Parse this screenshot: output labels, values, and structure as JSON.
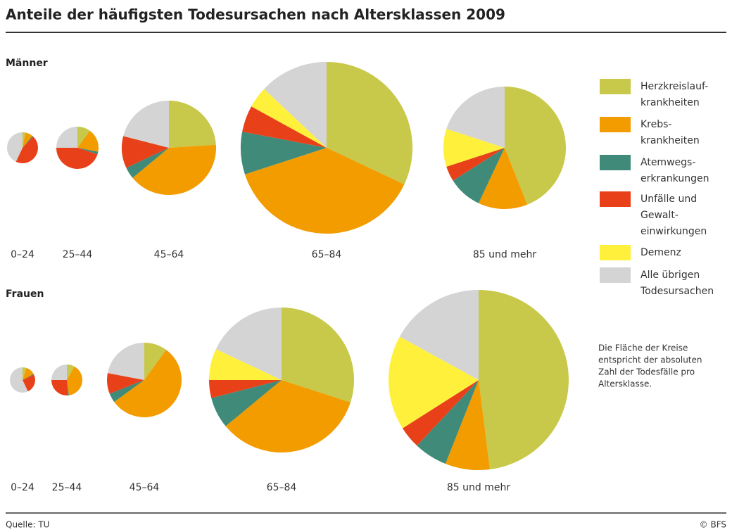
{
  "title": "Anteile der häufigsten Todesursachen nach Altersklassen 2009",
  "legend": {
    "categories": [
      [
        "Herzkreislauf-",
        "krankheiten"
      ],
      [
        "Krebs-",
        "krankheiten"
      ],
      [
        "Atemwegs-",
        "erkrankungen"
      ],
      [
        "Unfälle und",
        "Gewalt-",
        "einwirkungen"
      ],
      [
        "Demenz"
      ],
      [
        "Alle übrigen",
        "Todesursachen"
      ]
    ],
    "colors": [
      "#c8c84a",
      "#f39c00",
      "#3f8a78",
      "#e8411a",
      "#fff03c",
      "#d4d4d4"
    ]
  },
  "note": [
    "Die Fläche der Kreise",
    "entspricht der absoluten",
    "Zahl der Todesfälle pro",
    "Altersklasse."
  ],
  "source": "Quelle: TU",
  "credit": "© BFS",
  "chart_data": [
    {
      "type": "pie",
      "title": "Männer",
      "pies": [
        {
          "label": "0–24",
          "values": [
            3,
            8,
            1,
            45,
            0,
            43
          ],
          "deaths": 390
        },
        {
          "label": "25–44",
          "values": [
            10,
            18,
            2,
            45,
            0,
            25
          ],
          "deaths": 725
        },
        {
          "label": "45–64",
          "values": [
            24,
            40,
            4,
            11,
            0,
            21
          ],
          "deaths": 3620
        },
        {
          "label": "65–84",
          "values": [
            32,
            38,
            8,
            5,
            4,
            13
          ],
          "deaths": 12000
        },
        {
          "label": "85 und mehr",
          "values": [
            44,
            13,
            9,
            4,
            10,
            20
          ],
          "deaths": 6100
        }
      ]
    },
    {
      "type": "pie",
      "title": "Frauen",
      "pies": [
        {
          "label": "0–24",
          "values": [
            5,
            12,
            1,
            25,
            0,
            57
          ],
          "deaths": 260
        },
        {
          "label": "25–44",
          "values": [
            8,
            40,
            2,
            25,
            0,
            25
          ],
          "deaths": 390
        },
        {
          "label": "45–64",
          "values": [
            10,
            55,
            4,
            9,
            0,
            22
          ],
          "deaths": 2260
        },
        {
          "label": "65–84",
          "values": [
            30,
            34,
            7,
            4,
            7,
            18
          ],
          "deaths": 8550
        },
        {
          "label": "85 und mehr",
          "values": [
            48,
            8,
            6,
            4,
            17,
            17
          ],
          "deaths": 13200
        }
      ]
    }
  ]
}
